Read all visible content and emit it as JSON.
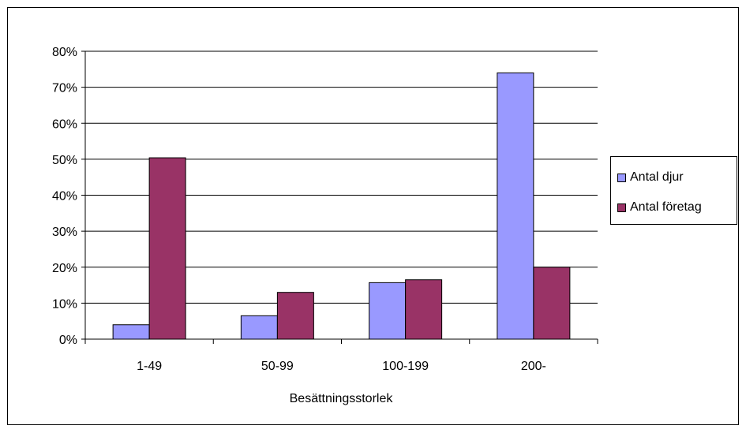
{
  "chart_data": {
    "type": "bar",
    "title": "",
    "xlabel": "Besättningsstorlek",
    "ylabel": "",
    "ylim": [
      0,
      0.8
    ],
    "yticks": [
      0,
      0.1,
      0.2,
      0.3,
      0.4,
      0.5,
      0.6,
      0.7,
      0.8
    ],
    "ytick_labels": [
      "0%",
      "10%",
      "20%",
      "30%",
      "40%",
      "50%",
      "60%",
      "70%",
      "80%"
    ],
    "grid": true,
    "legend_position": "right",
    "categories": [
      "1-49",
      "50-99",
      "100-199",
      "200-"
    ],
    "series": [
      {
        "name": "Antal djur",
        "color": "#9999ff",
        "values": [
          0.04,
          0.065,
          0.157,
          0.74
        ]
      },
      {
        "name": "Antal företag",
        "color": "#993366",
        "values": [
          0.504,
          0.13,
          0.165,
          0.2
        ]
      }
    ]
  }
}
